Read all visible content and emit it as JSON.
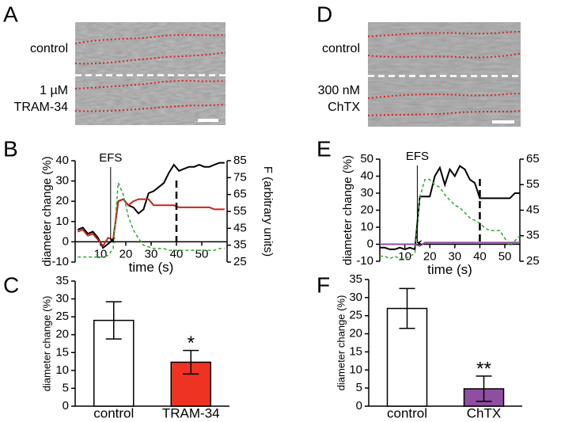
{
  "panel_letters": [
    "A",
    "D",
    "B",
    "E",
    "C",
    "F"
  ],
  "images": [
    {
      "labels": [
        "control",
        "1 µM",
        "TRAM-34"
      ]
    },
    {
      "labels": [
        "control",
        "300 nM",
        "ChTX"
      ]
    }
  ],
  "chart_data": [
    {
      "type": "line",
      "x": [
        1,
        3,
        5,
        7,
        9,
        11,
        13,
        15,
        17,
        19,
        21,
        23,
        25,
        27,
        29,
        31,
        33,
        35,
        37,
        39,
        41,
        43,
        45,
        47,
        49,
        51,
        53,
        55,
        57,
        59
      ],
      "xlim": [
        0,
        60
      ],
      "xticks": [
        10,
        20,
        30,
        40,
        50
      ],
      "xlabel": "time (s)",
      "ylabel": "diameter change (%)",
      "ylim": [
        -10,
        40
      ],
      "yticks": [
        -10,
        0,
        10,
        20,
        30,
        40
      ],
      "y2label": "F (arbitrary units)",
      "y2lim": [
        25,
        85
      ],
      "y2ticks": [
        25,
        35,
        45,
        55,
        65,
        75,
        85
      ],
      "annotation": {
        "text": "EFS",
        "x": 14
      },
      "dashed_line_x": 40,
      "series": [
        {
          "color": "#000000",
          "values": [
            6,
            7,
            4,
            5,
            2,
            -3,
            -1,
            1,
            20,
            21,
            18,
            17,
            14,
            16,
            24,
            25,
            27,
            29,
            34,
            38,
            35,
            36,
            37,
            37,
            38,
            37,
            37,
            38,
            39,
            39
          ]
        },
        {
          "color": "#c0281e",
          "values": [
            5,
            6,
            3,
            4,
            1,
            -2,
            2,
            1,
            20,
            21,
            18,
            20,
            21,
            21,
            21,
            18,
            18,
            18,
            18,
            18,
            17,
            17,
            17,
            17,
            17,
            17,
            17,
            16,
            16,
            16
          ]
        },
        {
          "color": "#3aa43a",
          "dashed": true,
          "axis": "y2",
          "values": [
            28,
            28,
            28,
            28,
            28,
            28,
            29,
            33,
            72,
            65,
            52,
            44,
            39,
            35,
            34,
            33,
            33,
            33,
            32,
            32,
            32,
            32,
            32,
            32,
            32,
            32,
            32,
            32,
            33,
            33
          ]
        }
      ]
    },
    {
      "type": "line",
      "x": [
        0,
        2,
        4,
        6,
        8,
        10,
        12,
        14,
        16,
        18,
        20,
        22,
        24,
        26,
        28,
        30,
        32,
        34,
        36,
        38,
        40,
        42,
        44,
        46,
        48,
        50,
        52,
        54,
        56
      ],
      "xlim": [
        0,
        56
      ],
      "xticks": [
        10,
        20,
        30,
        40,
        50
      ],
      "xlabel": "time (s)",
      "ylabel": "diameter change (%)",
      "ylim": [
        -10,
        50
      ],
      "yticks": [
        -10,
        0,
        10,
        20,
        30,
        40,
        50
      ],
      "y2lim": [
        25,
        65
      ],
      "y2ticks": [
        25,
        35,
        45,
        55,
        65
      ],
      "annotation": {
        "text": "EFS",
        "x": 15
      },
      "dashed_line_x": 40,
      "series": [
        {
          "color": "#000000",
          "values": [
            -2,
            -2,
            -3,
            -3,
            -2,
            -3,
            -2,
            -3,
            28,
            28,
            28,
            40,
            45,
            35,
            44,
            40,
            46,
            44,
            38,
            36,
            27,
            27,
            27,
            27,
            27,
            27,
            27,
            30,
            30
          ]
        },
        {
          "color": "#8e4fa0",
          "values": [
            0,
            0,
            0,
            0,
            0,
            0,
            0,
            0,
            -1,
            1,
            1,
            1,
            1,
            1,
            1,
            1,
            1,
            1,
            1,
            1,
            1,
            1,
            1,
            1,
            1,
            1,
            1,
            1,
            1
          ]
        },
        {
          "color": "#3aa43a",
          "dashed": true,
          "axis": "y2",
          "values": [
            27,
            27,
            26,
            27,
            26,
            26,
            27,
            28,
            50,
            57,
            57,
            55,
            54,
            51,
            49,
            47,
            46,
            44,
            42,
            41,
            40,
            38,
            37,
            37,
            37,
            34,
            31,
            33,
            35
          ]
        }
      ]
    },
    {
      "type": "bar",
      "categories": [
        "control",
        "TRAM-34"
      ],
      "values": [
        24,
        12.3
      ],
      "errors": [
        5.2,
        3.3
      ],
      "colors": [
        "#ffffff",
        "#ee3322"
      ],
      "ylabel": "diameter change (%)",
      "ylim": [
        0,
        35
      ],
      "yticks": [
        0,
        5,
        10,
        15,
        20,
        25,
        30,
        35
      ],
      "annotation": {
        "text": "*",
        "category": "TRAM-34"
      }
    },
    {
      "type": "bar",
      "categories": [
        "control",
        "ChTX"
      ],
      "values": [
        27,
        4.8
      ],
      "errors": [
        5.5,
        3.5
      ],
      "colors": [
        "#ffffff",
        "#8e4fa0"
      ],
      "ylabel": "diameter change (%)",
      "ylim": [
        0,
        35
      ],
      "yticks": [
        0,
        5,
        10,
        15,
        20,
        25,
        30,
        35
      ],
      "annotation": {
        "text": "**",
        "category": "ChTX"
      }
    }
  ]
}
